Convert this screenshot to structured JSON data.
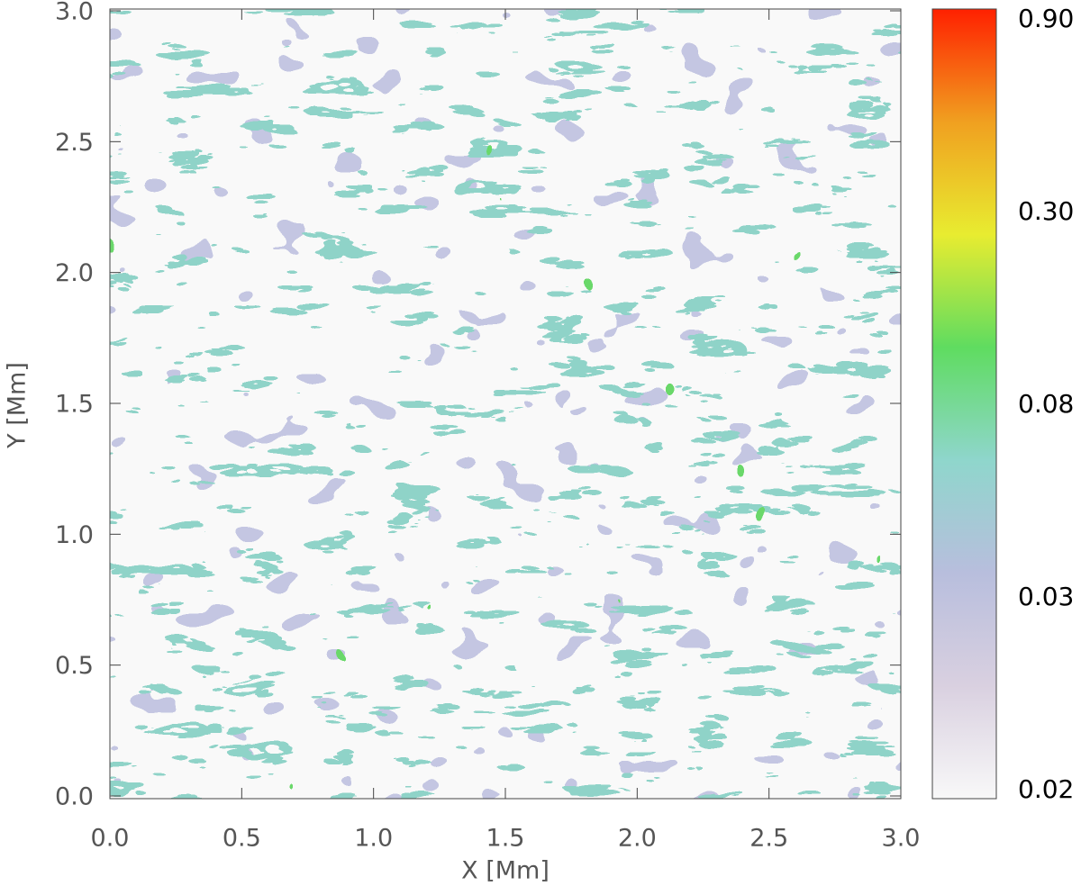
{
  "chart_data": {
    "type": "heatmap",
    "xlabel": "X [Mm]",
    "ylabel": "Y [Mm]",
    "xlim": [
      0,
      3
    ],
    "ylim": [
      0,
      3
    ],
    "xticks": [
      {
        "value": 0,
        "label": "0.0"
      },
      0.5,
      {
        "value": 1,
        "label": "1.0"
      },
      1.5,
      {
        "value": 2,
        "label": "2.0"
      },
      2.5,
      {
        "value": 3,
        "label": "3.0"
      }
    ],
    "yticks": [
      {
        "value": 0,
        "label": "0.0"
      },
      0.5,
      {
        "value": 1,
        "label": "1.0"
      },
      1.5,
      {
        "value": 2,
        "label": "2.0"
      },
      2.5,
      {
        "value": 3,
        "label": "3.0"
      }
    ],
    "colorbar": {
      "ticks": [
        0.02,
        0.03,
        0.08,
        {
          "value": 0.3,
          "label": "0.30"
        },
        {
          "value": 0.9,
          "label": "0.90"
        }
      ],
      "colors": [
        "#f8f8f8",
        "#d9d0e0",
        "#b8bedd",
        "#8fd6cc",
        "#5fdc60",
        "#e8ec30",
        "#f0a020",
        "#ff2000"
      ]
    }
  }
}
